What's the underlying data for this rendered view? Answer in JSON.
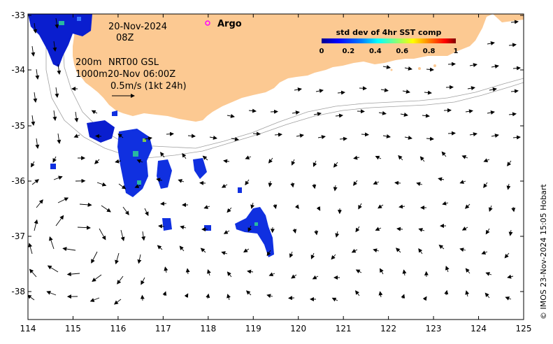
{
  "map": {
    "lon_ticks": [
      "114",
      "115",
      "116",
      "117",
      "118",
      "119",
      "120",
      "121",
      "122",
      "123",
      "124",
      "125"
    ],
    "lat_ticks": [
      "-33",
      "-34",
      "-35",
      "-36",
      "-37",
      "-38"
    ],
    "annotations": {
      "date": "20-Nov-2024",
      "hour": "08Z",
      "contour_200": "200m",
      "contour_1000": "1000m",
      "product": "NRT00 GSL",
      "product_time": "20-Nov 06:00Z",
      "velocity_scale": "0.5m/s (1kt 24h)"
    },
    "argo_label": "Argo",
    "colorbar": {
      "title": "std dev of 4hr SST comp",
      "ticks": [
        "0",
        "0.2",
        "0.4",
        "0.6",
        "0.8",
        "1"
      ],
      "colors": [
        "#00008f",
        "#0000ff",
        "#0080ff",
        "#00ffff",
        "#80ff80",
        "#ffff00",
        "#ff8000",
        "#ff0000",
        "#800000"
      ]
    },
    "credit": "© IMOS 23-Nov-2024 15:05 Hobart",
    "colors": {
      "land": "#fcc992",
      "ocean": "#ffffff",
      "argo_marker": "#ff00ff",
      "contour": "#a0a0a0"
    }
  }
}
